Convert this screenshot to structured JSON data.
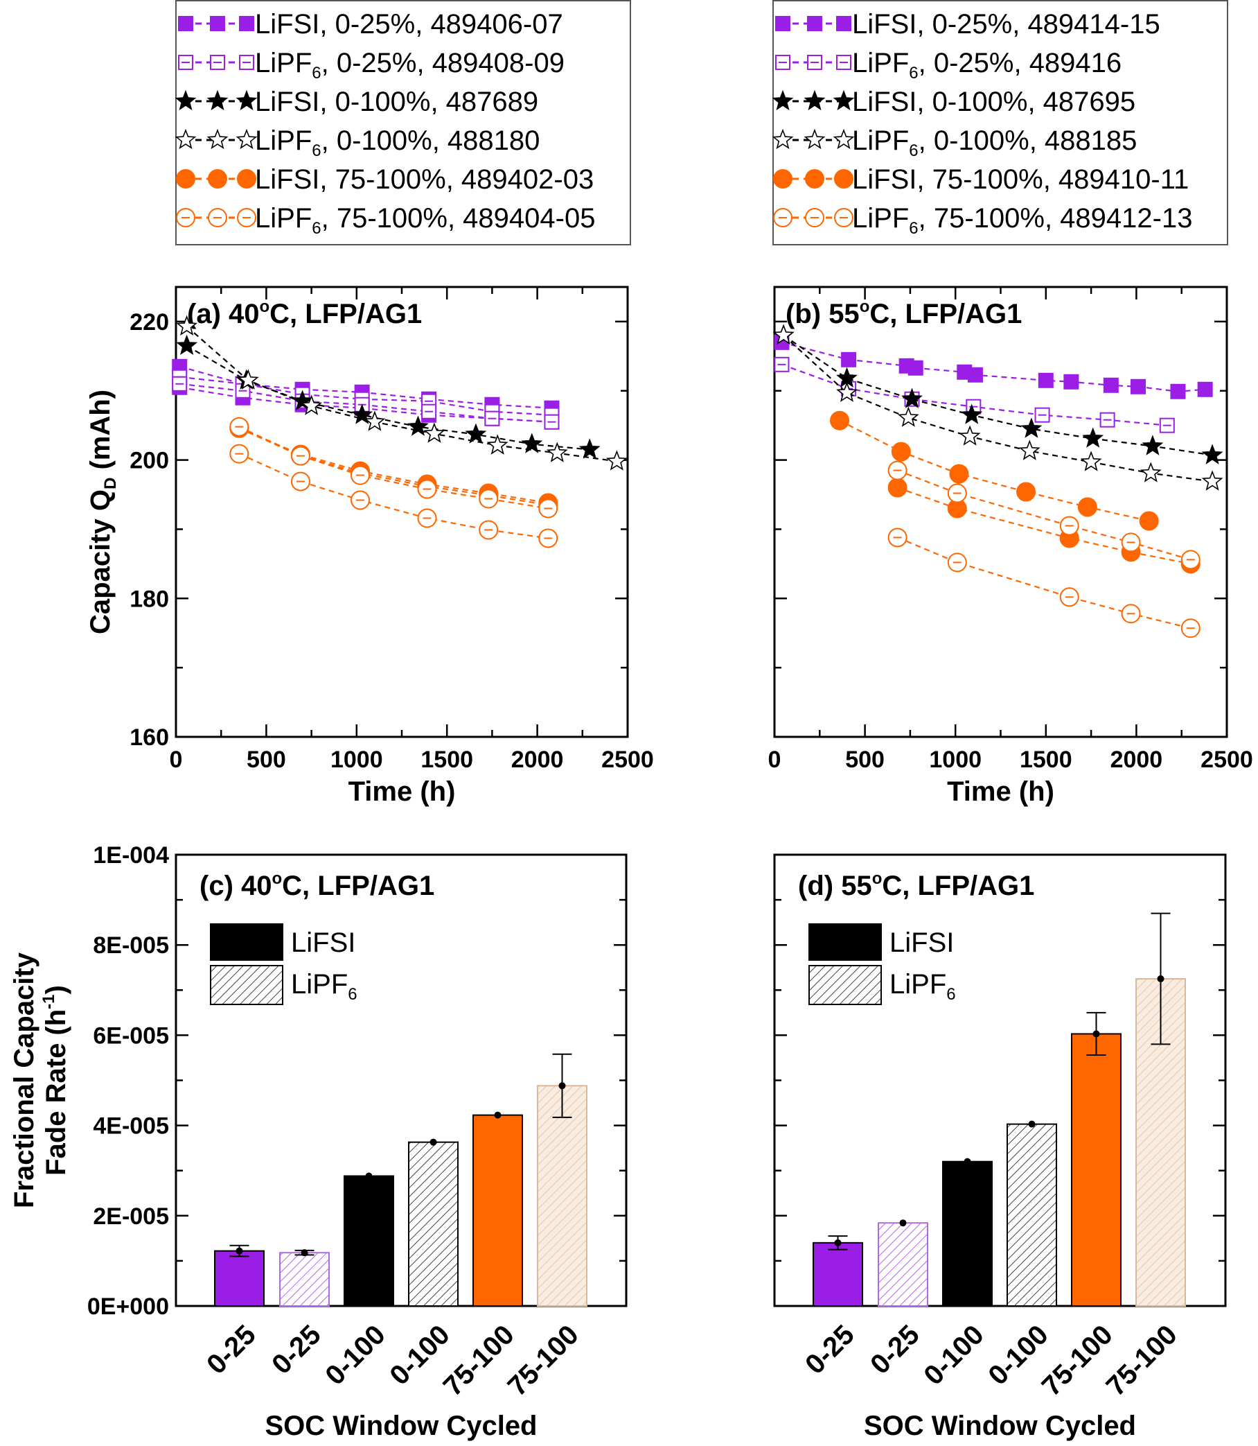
{
  "colors": {
    "purple": "#9b1ee6",
    "black": "#000000",
    "orange": "#ff6600"
  },
  "chart_data": [
    {
      "panel": "a",
      "type": "line",
      "title": "(a) 40",
      "title_sup": "o",
      "title_rest": "C, LFP/AG1",
      "xlabel": "Time (h)",
      "ylabel": "Capacity Q",
      "ylabel_sub": "D",
      "ylabel_unit": " (mAh)",
      "xlim": [
        0,
        2500
      ],
      "ylim": [
        160,
        225
      ],
      "xticks": [
        "0",
        "500",
        "1000",
        "1500",
        "2000",
        "2500"
      ],
      "yticks": [
        "160",
        "180",
        "200",
        "220"
      ],
      "legend_position": "top-above",
      "series": [
        {
          "label": "LiFSI, 0-25%, 489406-07",
          "salt": "LiFSI",
          "marker": "square",
          "color": "purple",
          "filled": true,
          "x": [
            20,
            370,
            700,
            1030,
            1400,
            1750,
            2080
          ],
          "y": [
            213.5,
            211.0,
            210.2,
            209.8,
            208.8,
            208.0,
            207.5
          ]
        },
        {
          "label": "LiFSI, 0-25%, 489406-07",
          "salt": "LiFSI",
          "marker": "square",
          "color": "purple",
          "filled": true,
          "x": [
            20,
            370,
            700,
            1030,
            1400,
            1750,
            2080
          ],
          "y": [
            210.5,
            209.0,
            208.0,
            207.5,
            206.5,
            206.0,
            205.5
          ]
        },
        {
          "label": "LiPF6, 0-25%, 489408-09",
          "salt": "LiPF6",
          "marker": "square",
          "color": "purple",
          "filled": false,
          "x": [
            20,
            370,
            700,
            1030,
            1400,
            1750,
            2080
          ],
          "y": [
            212.0,
            211.0,
            209.5,
            208.8,
            208.5,
            207.0,
            206.5
          ]
        },
        {
          "label": "LiPF6, 0-25%, 489408-09",
          "salt": "LiPF6",
          "marker": "square",
          "color": "purple",
          "filled": false,
          "x": [
            20,
            370,
            700,
            1030,
            1400,
            1750,
            2080
          ],
          "y": [
            211.0,
            210.0,
            208.5,
            208.0,
            207.0,
            206.0,
            205.5
          ]
        },
        {
          "label": "LiFSI, 0-100%, 487689",
          "salt": "LiFSI",
          "marker": "star",
          "color": "black",
          "filled": true,
          "x": [
            60,
            390,
            700,
            1030,
            1340,
            1660,
            1970,
            2290
          ],
          "y": [
            216.5,
            211.5,
            208.5,
            206.5,
            204.8,
            203.7,
            202.3,
            201.5
          ]
        },
        {
          "label": "LiPF6, 0-100%, 488180",
          "salt": "LiPF6",
          "marker": "star",
          "color": "black",
          "filled": false,
          "x": [
            60,
            400,
            750,
            1100,
            1430,
            1780,
            2110,
            2440
          ],
          "y": [
            219.3,
            211.5,
            207.8,
            205.5,
            203.8,
            202.1,
            201.0,
            199.8
          ]
        },
        {
          "label": "LiFSI, 75-100%, 489402-03",
          "salt": "LiFSI",
          "marker": "circle",
          "color": "orange",
          "filled": true,
          "x": [
            350,
            690,
            1020,
            1390,
            1730,
            2060
          ],
          "y": [
            204.6,
            200.8,
            198.4,
            196.5,
            195.2,
            193.8
          ]
        },
        {
          "label": "LiFSI, 75-100%, 489402-03",
          "salt": "LiFSI",
          "marker": "circle",
          "color": "orange",
          "filled": true,
          "x": [
            350,
            690,
            1020,
            1390,
            1730,
            2060
          ],
          "y": [
            204.6,
            200.6,
            198.1,
            196.2,
            194.9,
            193.5
          ]
        },
        {
          "label": "LiPF6, 75-100%, 489404-05",
          "salt": "LiPF6",
          "marker": "circle",
          "color": "orange",
          "filled": false,
          "x": [
            350,
            690,
            1020,
            1390,
            1730,
            2060
          ],
          "y": [
            204.8,
            200.6,
            197.8,
            195.8,
            194.4,
            193.0
          ]
        },
        {
          "label": "LiPF6, 75-100%, 489404-05",
          "salt": "LiPF6",
          "marker": "circle",
          "color": "orange",
          "filled": false,
          "x": [
            350,
            690,
            1020,
            1390,
            1730,
            2060
          ],
          "y": [
            200.9,
            196.9,
            194.2,
            191.6,
            189.9,
            188.7
          ]
        }
      ]
    },
    {
      "panel": "b",
      "type": "line",
      "title": "(b) 55",
      "title_sup": "o",
      "title_rest": "C, LFP/AG1",
      "xlabel": "Time (h)",
      "xlim": [
        0,
        2500
      ],
      "ylim": [
        160,
        225
      ],
      "xticks": [
        "0",
        "500",
        "1000",
        "1500",
        "2000",
        "2500"
      ],
      "legend_position": "top-above",
      "series": [
        {
          "label": "LiFSI, 0-25%, 489414-15",
          "salt": "LiFSI",
          "marker": "square",
          "color": "purple",
          "filled": true,
          "x": [
            40,
            410,
            730,
            780,
            1050,
            1110,
            1500,
            1640,
            1860,
            2010,
            2230,
            2380
          ],
          "y": [
            217.0,
            214.5,
            213.6,
            213.3,
            212.7,
            212.3,
            211.5,
            211.3,
            210.8,
            210.6,
            209.9,
            210.2
          ]
        },
        {
          "label": "LiPF6, 0-25%, 489416",
          "salt": "LiPF6",
          "marker": "square",
          "color": "purple",
          "filled": false,
          "x": [
            40,
            410,
            760,
            1100,
            1480,
            1840,
            2170
          ],
          "y": [
            213.8,
            210.3,
            208.8,
            207.7,
            206.5,
            205.8,
            205.0
          ]
        },
        {
          "label": "LiFSI, 0-100%, 487695",
          "salt": "LiFSI",
          "marker": "star",
          "color": "black",
          "filled": true,
          "x": [
            50,
            400,
            760,
            1090,
            1420,
            1760,
            2090,
            2420
          ],
          "y": [
            218.0,
            211.8,
            208.8,
            206.5,
            204.5,
            203.1,
            202.0,
            200.7
          ]
        },
        {
          "label": "LiPF6, 0-100%, 488185",
          "salt": "LiPF6",
          "marker": "star",
          "color": "black",
          "filled": false,
          "x": [
            50,
            400,
            740,
            1080,
            1410,
            1750,
            2080,
            2420
          ],
          "y": [
            218.0,
            209.7,
            206.1,
            203.4,
            201.3,
            199.7,
            198.1,
            196.9
          ]
        },
        {
          "label": "LiFSI, 75-100%, 489410-11",
          "salt": "LiFSI",
          "marker": "circle",
          "color": "orange",
          "filled": true,
          "x": [
            360,
            700,
            1020,
            1390,
            1730,
            2070
          ],
          "y": [
            205.7,
            201.2,
            198.0,
            195.4,
            193.2,
            191.2
          ]
        },
        {
          "label": "LiFSI, 75-100%, 489410-11",
          "salt": "LiFSI",
          "marker": "circle",
          "color": "orange",
          "filled": true,
          "x": [
            680,
            1010,
            1630,
            1970,
            2300
          ],
          "y": [
            196.0,
            193.0,
            188.7,
            186.7,
            185.0
          ]
        },
        {
          "label": "LiPF6, 75-100%, 489412-13",
          "salt": "LiPF6",
          "marker": "circle",
          "color": "orange",
          "filled": false,
          "x": [
            680,
            1010,
            1630,
            1970,
            2300
          ],
          "y": [
            198.5,
            195.2,
            190.5,
            188.1,
            185.6
          ]
        },
        {
          "label": "LiPF6, 75-100%, 489412-13",
          "salt": "LiPF6",
          "marker": "circle",
          "color": "orange",
          "filled": false,
          "x": [
            680,
            1010,
            1630,
            1970,
            2300
          ],
          "y": [
            188.8,
            185.2,
            180.2,
            177.8,
            175.7
          ]
        }
      ]
    },
    {
      "panel": "c",
      "type": "bar",
      "title": "(c) 40",
      "title_sup": "o",
      "title_rest": "C, LFP/AG1",
      "xlabel": "SOC Window Cycled",
      "ylabel_line1": "Fractional Capacity",
      "ylabel_line2": "Fade Rate (h",
      "ylabel_sup": "-1",
      "ylabel_close": ")",
      "ylim": [
        0,
        0.0001
      ],
      "yticks": [
        "0E+000",
        "2E-005",
        "4E-005",
        "6E-005",
        "8E-005",
        "1E-004"
      ],
      "categories": [
        "0-25",
        "0-25",
        "0-100",
        "0-100",
        "75-100",
        "75-100"
      ],
      "values": [
        1.22e-05,
        1.18e-05,
        2.88e-05,
        3.63e-05,
        4.23e-05,
        4.88e-05
      ],
      "errors": [
        1.2e-06,
        5e-07,
        0.0,
        0.0,
        0.0,
        7e-06
      ],
      "bar_colors": [
        "purple",
        "purple",
        "black",
        "black",
        "orange",
        "orange"
      ],
      "bar_salt": [
        "LiFSI",
        "LiPF6",
        "LiFSI",
        "LiPF6",
        "LiFSI",
        "LiPF6"
      ],
      "legend": [
        "LiFSI",
        "LiPF",
        "6"
      ]
    },
    {
      "panel": "d",
      "type": "bar",
      "title": "(d) 55",
      "title_sup": "o",
      "title_rest": "C, LFP/AG1",
      "xlabel": "SOC Window Cycled",
      "ylim": [
        0,
        0.0001
      ],
      "categories": [
        "0-25",
        "0-25",
        "0-100",
        "0-100",
        "75-100",
        "75-100"
      ],
      "values": [
        1.4e-05,
        1.84e-05,
        3.2e-05,
        4.03e-05,
        6.03e-05,
        7.25e-05
      ],
      "errors": [
        1.5e-06,
        0.0,
        0.0,
        0.0,
        4.7e-06,
        1.45e-05
      ],
      "bar_colors": [
        "purple",
        "purple",
        "black",
        "black",
        "orange",
        "orange"
      ],
      "bar_salt": [
        "LiFSI",
        "LiPF6",
        "LiFSI",
        "LiPF6",
        "LiFSI",
        "LiPF6"
      ],
      "legend": [
        "LiFSI",
        "LiPF",
        "6"
      ]
    }
  ],
  "legends": {
    "a": [
      {
        "salt": "LiFSI",
        "rest": ", 0-25%, 489406-07",
        "marker": "square",
        "color": "purple",
        "filled": true
      },
      {
        "salt": "LiPF",
        "sub": "6",
        "rest": ", 0-25%, 489408-09",
        "marker": "square",
        "color": "purple",
        "filled": false
      },
      {
        "salt": "LiFSI",
        "rest": ", 0-100%, 487689",
        "marker": "star",
        "color": "black",
        "filled": true
      },
      {
        "salt": "LiPF",
        "sub": "6",
        "rest": ", 0-100%, 488180",
        "marker": "star",
        "color": "black",
        "filled": false
      },
      {
        "salt": "LiFSI",
        "rest": ", 75-100%, 489402-03",
        "marker": "circle",
        "color": "orange",
        "filled": true
      },
      {
        "salt": "LiPF",
        "sub": "6",
        "rest": ", 75-100%, 489404-05",
        "marker": "circle",
        "color": "orange",
        "filled": false
      }
    ],
    "b": [
      {
        "salt": "LiFSI",
        "rest": ", 0-25%, 489414-15",
        "marker": "square",
        "color": "purple",
        "filled": true
      },
      {
        "salt": "LiPF",
        "sub": "6",
        "rest": ", 0-25%, 489416",
        "marker": "square",
        "color": "purple",
        "filled": false
      },
      {
        "salt": "LiFSI",
        "rest": ", 0-100%, 487695",
        "marker": "star",
        "color": "black",
        "filled": true
      },
      {
        "salt": "LiPF",
        "sub": "6",
        "rest": ", 0-100%, 488185",
        "marker": "star",
        "color": "black",
        "filled": false
      },
      {
        "salt": "LiFSI",
        "rest": ", 75-100%, 489410-11",
        "marker": "circle",
        "color": "orange",
        "filled": true
      },
      {
        "salt": "LiPF",
        "sub": "6",
        "rest": ", 75-100%, 489412-13",
        "marker": "circle",
        "color": "orange",
        "filled": false
      }
    ]
  }
}
